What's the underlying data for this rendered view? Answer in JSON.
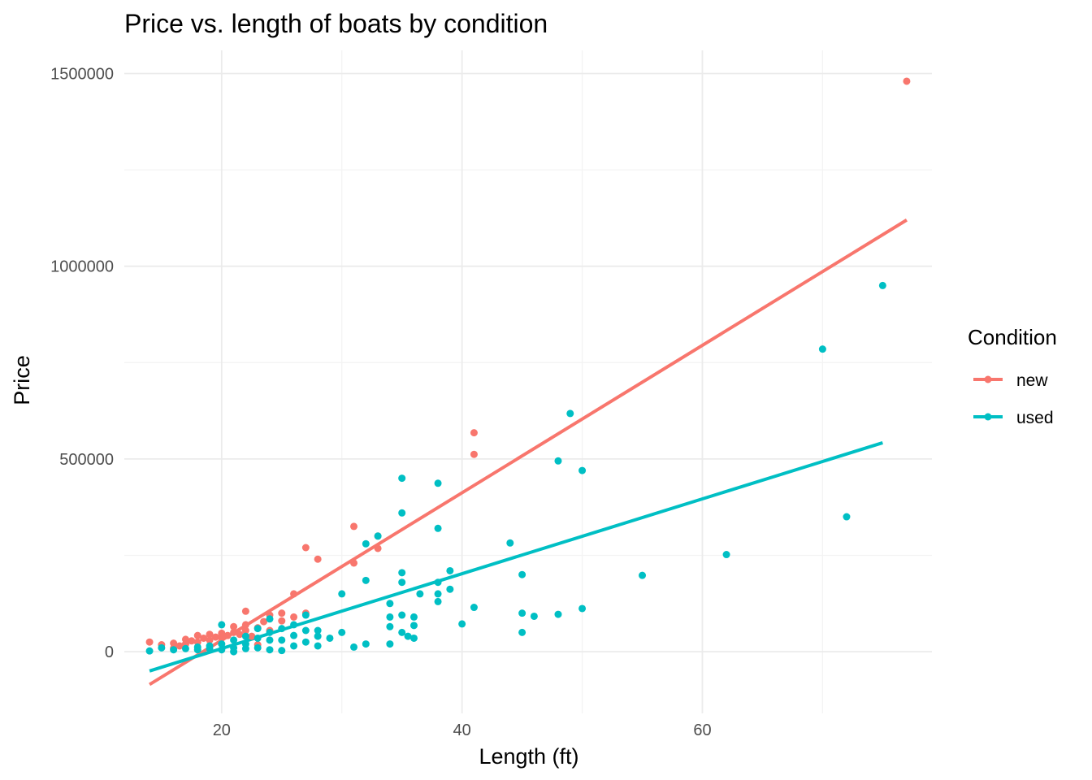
{
  "chart_data": {
    "type": "scatter",
    "title": "Price vs. length of boats by condition",
    "xlabel": "Length (ft)",
    "ylabel": "Price",
    "xlim": [
      11.9,
      79.1
    ],
    "ylim": [
      -160000,
      1560000
    ],
    "x_ticks": [
      20,
      40,
      60
    ],
    "y_ticks": [
      0,
      500000,
      1000000,
      1500000
    ],
    "x_tick_labels": [
      "20",
      "40",
      "60"
    ],
    "y_tick_labels": [
      "0",
      "500000",
      "1000000",
      "1500000"
    ],
    "grid": true,
    "legend": {
      "title": "Condition",
      "position": "right"
    },
    "series": [
      {
        "name": "new",
        "color": "#f8766d",
        "points": [
          [
            14,
            25000
          ],
          [
            15,
            18000
          ],
          [
            16,
            22000
          ],
          [
            16,
            9000
          ],
          [
            16.5,
            15000
          ],
          [
            17,
            32000
          ],
          [
            17,
            20000
          ],
          [
            17.5,
            28000
          ],
          [
            18,
            42000
          ],
          [
            18,
            25000
          ],
          [
            18.5,
            35000
          ],
          [
            19,
            30000
          ],
          [
            19,
            45000
          ],
          [
            19.5,
            38000
          ],
          [
            20,
            35000
          ],
          [
            20,
            48000
          ],
          [
            20.5,
            42000
          ],
          [
            21,
            50000
          ],
          [
            21,
            65000
          ],
          [
            21.5,
            45000
          ],
          [
            22,
            55000
          ],
          [
            22,
            70000
          ],
          [
            22,
            105000
          ],
          [
            22.5,
            40000
          ],
          [
            23,
            62000
          ],
          [
            23,
            18000
          ],
          [
            23.5,
            78000
          ],
          [
            24,
            95000
          ],
          [
            24,
            55000
          ],
          [
            25,
            100000
          ],
          [
            25,
            80000
          ],
          [
            26,
            150000
          ],
          [
            26,
            90000
          ],
          [
            27,
            270000
          ],
          [
            27,
            100000
          ],
          [
            28,
            240000
          ],
          [
            31,
            325000
          ],
          [
            31,
            230000
          ],
          [
            33,
            300000
          ],
          [
            33,
            268000
          ],
          [
            41,
            568000
          ],
          [
            41,
            512000
          ],
          [
            77,
            1480000
          ]
        ],
        "fit": {
          "x": [
            14,
            77
          ],
          "y": [
            -85000,
            1120000
          ]
        }
      },
      {
        "name": "used",
        "color": "#00bfc4",
        "points": [
          [
            14,
            2000
          ],
          [
            15,
            10000
          ],
          [
            16,
            5000
          ],
          [
            17,
            8000
          ],
          [
            18,
            12000
          ],
          [
            18,
            5000
          ],
          [
            19,
            15000
          ],
          [
            19,
            8000
          ],
          [
            20,
            70000
          ],
          [
            20,
            20000
          ],
          [
            20,
            5000
          ],
          [
            21,
            10000
          ],
          [
            21,
            0
          ],
          [
            21,
            30000
          ],
          [
            22,
            40000
          ],
          [
            22,
            20000
          ],
          [
            22,
            8000
          ],
          [
            23,
            60000
          ],
          [
            23,
            35000
          ],
          [
            23,
            10000
          ],
          [
            24,
            85000
          ],
          [
            24,
            50000
          ],
          [
            24,
            5000
          ],
          [
            24,
            30000
          ],
          [
            25,
            60000
          ],
          [
            25,
            30000
          ],
          [
            25,
            3000
          ],
          [
            26,
            70000
          ],
          [
            26,
            42000
          ],
          [
            26,
            15000
          ],
          [
            27,
            95000
          ],
          [
            27,
            55000
          ],
          [
            27,
            25000
          ],
          [
            28,
            55000
          ],
          [
            28,
            40000
          ],
          [
            28,
            15000
          ],
          [
            29,
            35000
          ],
          [
            30,
            150000
          ],
          [
            30,
            50000
          ],
          [
            31,
            12000
          ],
          [
            32,
            185000
          ],
          [
            32,
            20000
          ],
          [
            32,
            280000
          ],
          [
            33,
            300000
          ],
          [
            34,
            125000
          ],
          [
            34,
            90000
          ],
          [
            34,
            20000
          ],
          [
            34,
            65000
          ],
          [
            35,
            450000
          ],
          [
            35,
            360000
          ],
          [
            35,
            205000
          ],
          [
            35,
            180000
          ],
          [
            35,
            95000
          ],
          [
            35,
            50000
          ],
          [
            35.5,
            40000
          ],
          [
            36,
            90000
          ],
          [
            36,
            35000
          ],
          [
            36,
            68000
          ],
          [
            36.5,
            150000
          ],
          [
            38,
            437000
          ],
          [
            38,
            320000
          ],
          [
            38,
            180000
          ],
          [
            38,
            150000
          ],
          [
            38,
            130000
          ],
          [
            39,
            210000
          ],
          [
            39,
            162000
          ],
          [
            40,
            72000
          ],
          [
            41,
            115000
          ],
          [
            44,
            282000
          ],
          [
            45,
            200000
          ],
          [
            45,
            100000
          ],
          [
            45,
            50000
          ],
          [
            46,
            92000
          ],
          [
            48,
            495000
          ],
          [
            48,
            97000
          ],
          [
            49,
            618000
          ],
          [
            50,
            470000
          ],
          [
            50,
            112000
          ],
          [
            55,
            198000
          ],
          [
            62,
            252000
          ],
          [
            70,
            785000
          ],
          [
            72,
            350000
          ],
          [
            75,
            950000
          ]
        ],
        "fit": {
          "x": [
            14,
            75
          ],
          "y": [
            -50000,
            542000
          ]
        }
      }
    ]
  }
}
